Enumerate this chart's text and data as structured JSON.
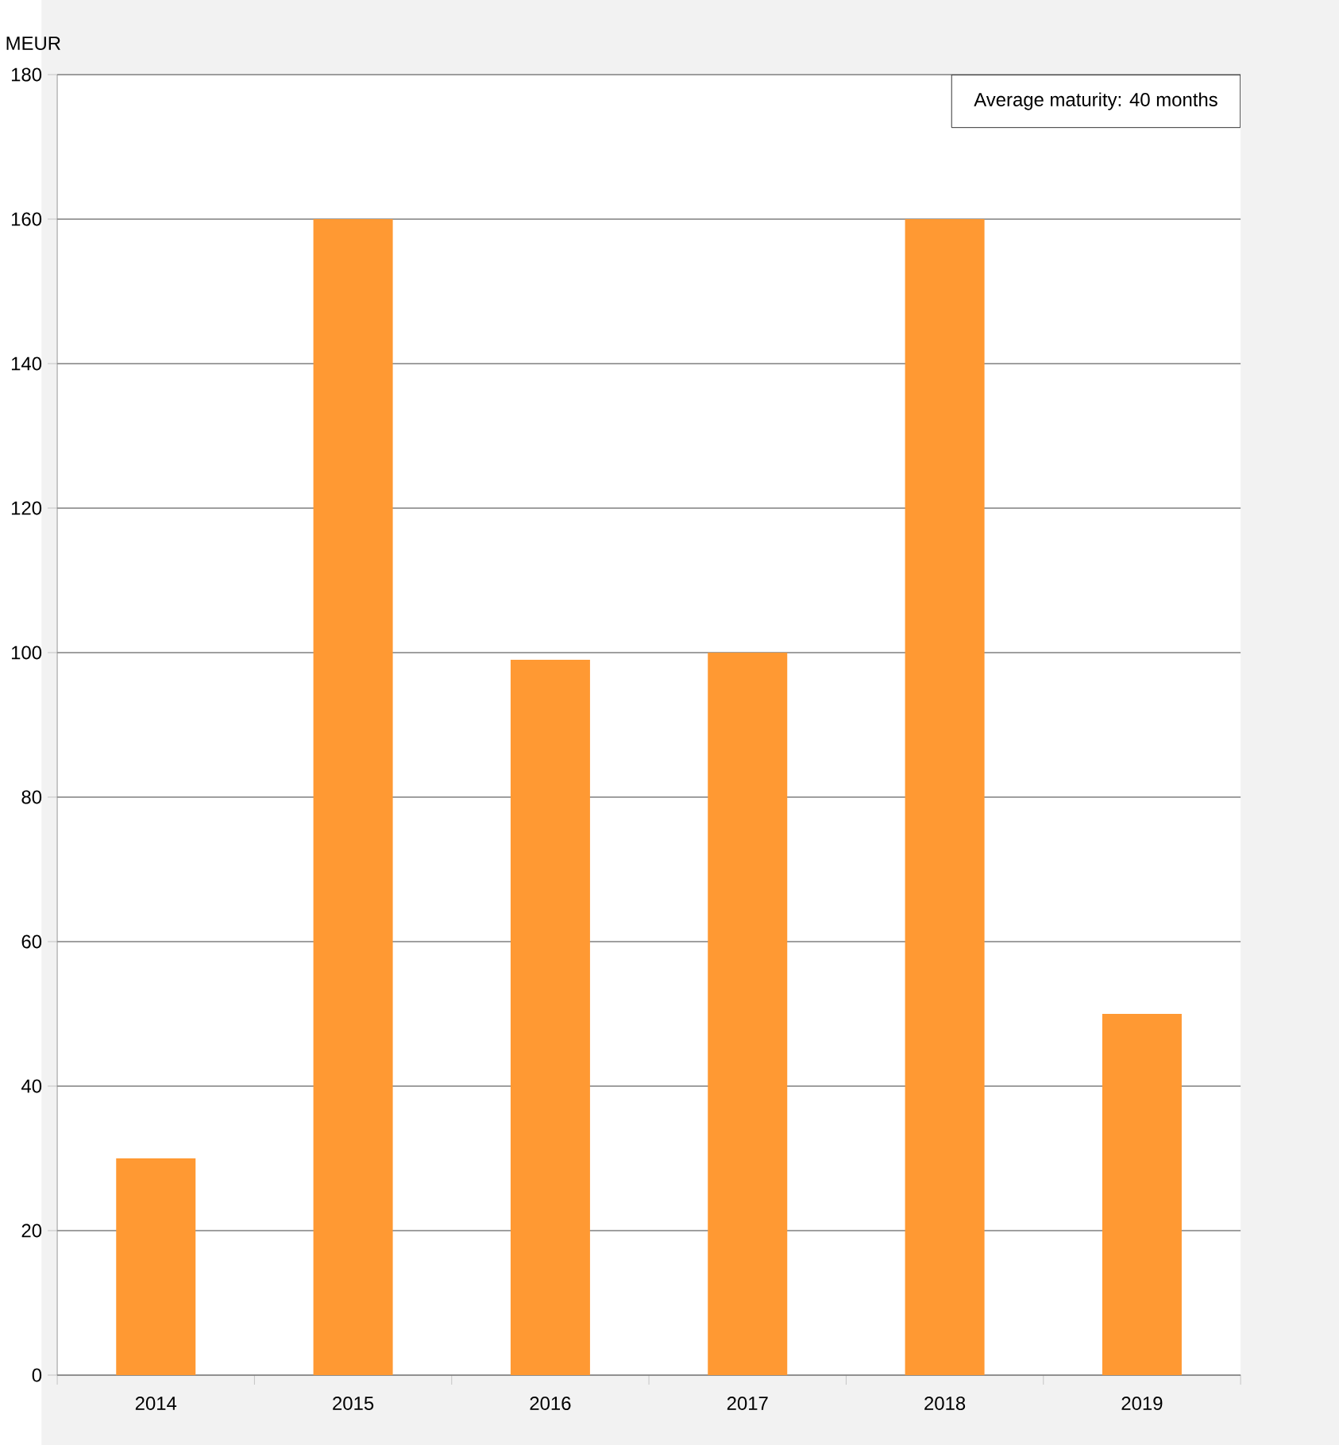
{
  "chart_data": {
    "type": "bar",
    "ylabel": "MEUR",
    "annotations": [
      "Average maturity: 40 months"
    ],
    "categories": [
      "2014",
      "2015",
      "2016",
      "2017",
      "2018",
      "2019"
    ],
    "values": [
      30,
      160,
      99,
      100,
      160,
      50
    ],
    "color": "#ff9933",
    "ylim": [
      0,
      180
    ],
    "yticks": [
      0,
      20,
      40,
      60,
      80,
      100,
      120,
      140,
      160,
      180
    ],
    "grid": "y"
  }
}
